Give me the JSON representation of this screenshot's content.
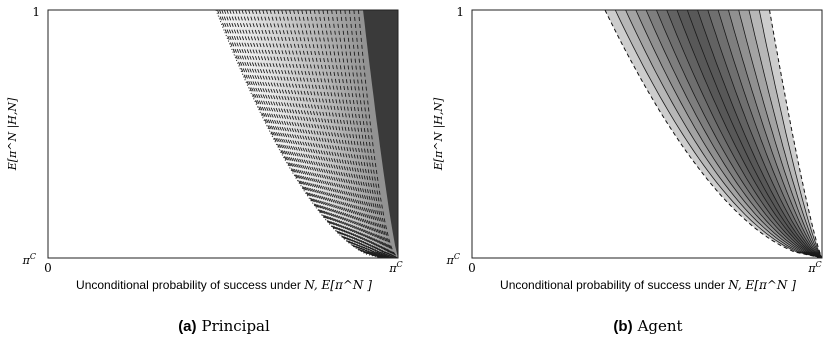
{
  "chart_data": [
    {
      "type": "area",
      "panel_label": "(a)",
      "caption": "Principal",
      "xlabel_text": "Unconditional probability of success under ",
      "xlabel_math": "N, E[π^N ]",
      "ylabel": "E[π^N |H,N]",
      "x_ticks": {
        "left": "0",
        "right": "π^C"
      },
      "y_ticks": {
        "bottom": "π^C",
        "top": "1"
      },
      "xlim": [
        0,
        1
      ],
      "ylim": [
        0,
        1
      ],
      "boundary": {
        "x_top": 0.48,
        "x_bottom": 0.95,
        "curvature": 1.7
      },
      "contours": 40,
      "contour_style": "dashed",
      "boundary_style": "dotted",
      "dark_x_top": 0.9,
      "dark_color": "#3a3a3a",
      "light_color": "#f7f7f7"
    },
    {
      "type": "area",
      "panel_label": "(b)",
      "caption": "Agent",
      "xlabel_text": "Unconditional probability of success under ",
      "xlabel_math": "N, E[π^N ]",
      "ylabel": "E[π^N |H,N]",
      "x_ticks": {
        "left": "0",
        "right": "π^C"
      },
      "y_ticks": {
        "bottom": "π^C",
        "top": "1"
      },
      "xlim": [
        0,
        1
      ],
      "ylim": [
        0,
        1
      ],
      "region": {
        "left_x_top": 0.38,
        "right_x_top": 0.85,
        "apex_x": 1.0,
        "curvature": 1.8
      },
      "contours": 16,
      "contour_style": "solid",
      "boundary_style": "dashed",
      "peak_color": "#555555",
      "edge_color": "#d8d8d8"
    }
  ]
}
